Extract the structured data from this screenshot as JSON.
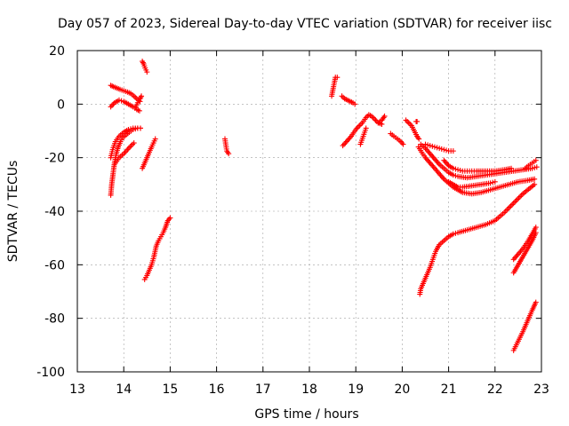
{
  "chart_data": {
    "type": "scatter",
    "title": "Day 057 of 2023, Sidereal Day-to-day VTEC variation (SDTVAR) for receiver iisc",
    "xlabel": "GPS time / hours",
    "ylabel": "SDTVAR / TECUs",
    "xlim": [
      13,
      23
    ],
    "ylim": [
      -100,
      20
    ],
    "xticks": [
      "13",
      "14",
      "15",
      "16",
      "17",
      "18",
      "19",
      "20",
      "21",
      "22",
      "23"
    ],
    "yticks": [
      "20",
      "0",
      "-20",
      "-40",
      "-60",
      "-80",
      "-100"
    ],
    "grid": true,
    "marker": "plus",
    "color": "#ff0000",
    "traces": [
      {
        "x": [
          13.72,
          13.78,
          13.85,
          13.92,
          14.0,
          14.08,
          14.15,
          14.22,
          14.28,
          14.35
        ],
        "y": [
          7,
          6.5,
          6,
          5.5,
          5,
          4.5,
          4,
          3,
          2,
          1
        ]
      },
      {
        "x": [
          13.72,
          13.8,
          13.9,
          14.0,
          14.1,
          14.2,
          14.28,
          14.34
        ],
        "y": [
          -1,
          0.5,
          1.5,
          1,
          0,
          -1,
          -2,
          -2.5
        ]
      },
      {
        "x": [
          14.26,
          14.3,
          14.35,
          14.38
        ],
        "y": [
          -1,
          0.5,
          2,
          3
        ]
      },
      {
        "x": [
          13.72,
          13.74,
          13.77,
          13.8,
          13.84,
          13.88,
          13.93,
          13.98,
          14.05,
          14.12,
          14.2,
          14.3,
          14.36
        ],
        "y": [
          -34,
          -30,
          -26,
          -22,
          -18.5,
          -16,
          -14,
          -12.5,
          -11.5,
          -10.5,
          -9.5,
          -9,
          -9
        ]
      },
      {
        "x": [
          13.72,
          13.76,
          13.82,
          13.9,
          14.0,
          14.1,
          14.2,
          14.3,
          14.36
        ],
        "y": [
          -20,
          -17,
          -14,
          -12,
          -10.5,
          -9.5,
          -9,
          -9,
          -9
        ]
      },
      {
        "x": [
          13.82,
          13.9,
          14.0,
          14.08,
          14.16,
          14.22
        ],
        "y": [
          -22,
          -20,
          -18.5,
          -17,
          -15.5,
          -14.5
        ]
      },
      {
        "x": [
          14.4,
          14.43,
          14.46,
          14.5
        ],
        "y": [
          16,
          15,
          13.5,
          12
        ]
      },
      {
        "x": [
          14.4,
          14.45,
          14.5,
          14.55,
          14.6
        ],
        "y": [
          -24,
          -22,
          -20,
          -18,
          -16
        ]
      },
      {
        "x": [
          14.6,
          14.64,
          14.68
        ],
        "y": [
          -16,
          -14.5,
          -13
        ]
      },
      {
        "x": [
          14.45,
          14.5,
          14.55,
          14.6,
          14.65,
          14.7,
          14.75,
          14.8,
          14.85,
          14.9,
          14.95,
          15.0
        ],
        "y": [
          -65.5,
          -64,
          -62,
          -60,
          -57,
          -53,
          -51,
          -49.5,
          -48,
          -46,
          -43.5,
          -42.5
        ]
      },
      {
        "x": [
          16.18,
          16.22,
          16.26
        ],
        "y": [
          -13,
          -17.5,
          -18.5
        ]
      },
      {
        "x": [
          18.48,
          18.56,
          18.6
        ],
        "y": [
          3,
          10,
          10
        ]
      },
      {
        "x": [
          18.7,
          18.76,
          18.82,
          18.88,
          18.94,
          18.98
        ],
        "y": [
          3,
          2,
          1.5,
          1,
          0.5,
          0
        ]
      },
      {
        "x": [
          18.72,
          18.8,
          18.9,
          19.0,
          19.08,
          19.14,
          19.22,
          19.28,
          19.34,
          19.4,
          19.48,
          19.56,
          19.62
        ],
        "y": [
          -15.5,
          -14,
          -12,
          -9.5,
          -8,
          -7,
          -5,
          -4,
          -4.5,
          -5.5,
          -7,
          -6,
          -4.5
        ]
      },
      {
        "x": [
          19.1,
          19.16,
          19.22
        ],
        "y": [
          -15,
          -12,
          -9
        ]
      },
      {
        "x": [
          19.5,
          19.56
        ],
        "y": [
          -7,
          -7.5
        ]
      },
      {
        "x": [
          19.75,
          19.82,
          19.9,
          19.97,
          20.02
        ],
        "y": [
          -11,
          -12,
          -13,
          -14,
          -15
        ]
      },
      {
        "x": [
          20.08,
          20.14,
          20.2,
          20.26,
          20.32,
          20.36
        ],
        "y": [
          -6,
          -7,
          -8,
          -10,
          -12,
          -13
        ]
      },
      {
        "x": [
          20.3,
          20.32
        ],
        "y": [
          -6.5,
          -6.5
        ]
      },
      {
        "x": [
          20.35,
          20.42,
          20.5,
          20.6,
          20.7,
          20.8,
          20.9,
          21.0,
          21.1,
          21.2,
          21.3,
          21.5,
          21.7,
          21.9,
          22.1,
          22.3,
          22.5,
          22.7,
          22.85
        ],
        "y": [
          -16,
          -18,
          -20,
          -22,
          -24,
          -26,
          -28,
          -29.5,
          -31,
          -32,
          -33,
          -33.5,
          -33,
          -32,
          -31,
          -30,
          -29,
          -28.5,
          -28
        ]
      },
      {
        "x": [
          20.4,
          20.5,
          20.6,
          20.7,
          20.8,
          20.9,
          21.0,
          21.1,
          21.2,
          21.4,
          21.6,
          21.8,
          22.0,
          22.2,
          22.4,
          22.6,
          22.8,
          22.9
        ],
        "y": [
          -15,
          -16.5,
          -18.5,
          -20.5,
          -22.5,
          -24,
          -25.5,
          -26.5,
          -27,
          -27.5,
          -27,
          -26.5,
          -26,
          -25.5,
          -25,
          -24.5,
          -24,
          -23.5
        ]
      },
      {
        "x": [
          20.5,
          20.6,
          20.7,
          20.8,
          20.9,
          21.0,
          21.1
        ],
        "y": [
          -15,
          -15.5,
          -16,
          -16.5,
          -17,
          -17.5,
          -17.5
        ]
      },
      {
        "x": [
          20.9,
          21.0,
          21.1,
          21.2,
          21.3,
          21.4,
          21.5,
          21.6,
          21.8,
          22.0,
          22.2,
          22.35
        ],
        "y": [
          -21,
          -23,
          -24,
          -24.5,
          -25,
          -25,
          -25,
          -25,
          -25,
          -25,
          -24.5,
          -24
        ]
      },
      {
        "x": [
          21.0,
          21.1,
          21.2,
          21.3,
          21.5,
          21.7,
          21.9,
          22.0
        ],
        "y": [
          -29,
          -30,
          -31,
          -31,
          -30.5,
          -30,
          -29.5,
          -29
        ]
      },
      {
        "x": [
          22.65,
          22.72,
          22.8,
          22.88
        ],
        "y": [
          -24,
          -23,
          -22,
          -21
        ]
      },
      {
        "x": [
          20.38,
          20.4,
          20.45,
          20.5,
          20.55,
          20.6,
          20.66,
          20.72,
          20.8,
          20.9,
          21.0,
          21.1,
          21.2,
          21.4,
          21.6,
          21.8,
          22.0,
          22.2,
          22.4,
          22.6,
          22.85
        ],
        "y": [
          -71,
          -69,
          -67,
          -65,
          -63,
          -61,
          -58,
          -55,
          -52.5,
          -51,
          -49.5,
          -48.5,
          -48,
          -47,
          -46,
          -45,
          -43.5,
          -40.5,
          -37,
          -33.5,
          -30
        ]
      },
      {
        "x": [
          22.4,
          22.5,
          22.6,
          22.7,
          22.8,
          22.88
        ],
        "y": [
          -58,
          -56,
          -54,
          -51.5,
          -48.5,
          -46
        ]
      },
      {
        "x": [
          22.4,
          22.5,
          22.6,
          22.7,
          22.8,
          22.88
        ],
        "y": [
          -63,
          -60,
          -57,
          -54,
          -51,
          -48
        ]
      },
      {
        "x": [
          22.4,
          22.5,
          22.6,
          22.7,
          22.8,
          22.88
        ],
        "y": [
          -92,
          -88.5,
          -85,
          -81,
          -77,
          -74
        ]
      }
    ]
  }
}
